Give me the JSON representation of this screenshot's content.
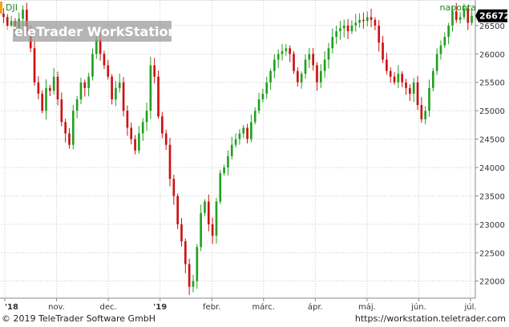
{
  "chart_data": {
    "type": "candlestick",
    "symbol": "DJI",
    "period_label": "naponta",
    "last_value": "26672",
    "watermark": "TeleTrader WorkStation",
    "ylim": [
      21700,
      26950
    ],
    "y_ticks": [
      22000,
      22500,
      23000,
      23500,
      24000,
      24500,
      25000,
      25500,
      26000,
      26500
    ],
    "x_ticks": [
      "'18",
      "nov.",
      "dec.",
      "'19",
      "febr.",
      "márc.",
      "ápr.",
      "máj.",
      "jún.",
      "júl."
    ],
    "colors": {
      "up": "#22a022",
      "down": "#cc1111",
      "grid": "#c8c8c8",
      "accent": "#f7a21b",
      "last": "#000000"
    },
    "close_series": [
      26650,
      26500,
      26580,
      26450,
      26620,
      26780,
      26400,
      26100,
      25500,
      25300,
      25000,
      25400,
      25350,
      25600,
      25200,
      24800,
      24600,
      24400,
      25000,
      25200,
      25500,
      25400,
      25600,
      26000,
      26250,
      26000,
      25800,
      25600,
      25200,
      25400,
      25500,
      25000,
      24700,
      24500,
      24300,
      24600,
      24800,
      25000,
      25800,
      25600,
      24900,
      24600,
      24400,
      23800,
      23500,
      23000,
      22700,
      22300,
      21900,
      22000,
      22600,
      23200,
      23400,
      23000,
      22800,
      23400,
      23900,
      24000,
      24200,
      24400,
      24500,
      24600,
      24700,
      24500,
      24800,
      25000,
      25200,
      25300,
      25500,
      25700,
      25900,
      26000,
      26050,
      26100,
      26000,
      25700,
      25500,
      25650,
      25900,
      26000,
      25800,
      25500,
      25700,
      25900,
      26100,
      26300,
      26400,
      26450,
      26500,
      26400,
      26500,
      26550,
      26600,
      26580,
      26650,
      26600,
      26500,
      26200,
      25900,
      25700,
      25600,
      25500,
      25650,
      25500,
      25400,
      25300,
      25500,
      25100,
      24850,
      25000,
      25400,
      25700,
      26000,
      26150,
      26300,
      26500,
      26750,
      26600,
      26650,
      26800,
      26550,
      26672
    ]
  },
  "footer": {
    "copyright": "© 2019 TeleTrader Software GmbH",
    "url": "https://workstation.teletrader.com"
  }
}
